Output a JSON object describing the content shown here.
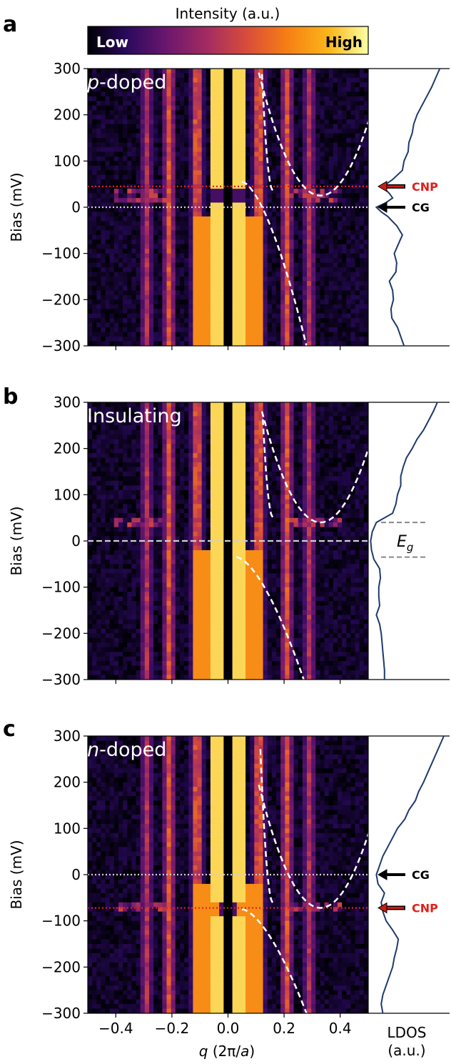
{
  "colorbar": {
    "label": "Intensity (a.u.)",
    "low_label": "Low",
    "high_label": "High",
    "colormap": "inferno",
    "stops": [
      "#000004",
      "#2a0a5e",
      "#6a176e",
      "#a52c60",
      "#d94d3a",
      "#f67e14",
      "#fbb61a",
      "#fcffa4"
    ]
  },
  "axis_common": {
    "ylabel": "Bias (mV)",
    "xlabel": "q (2π/a)",
    "xlabel_italic": "q",
    "xlabel_rest": " (2π/",
    "xlabel_a": "a",
    "xlabel_close": ")",
    "ldos_label_line1": "LDOS",
    "ldos_label_line2": "(a.u.)",
    "xticks": [
      "−0.4",
      "−0.2",
      "0.0",
      "0.2",
      "0.4"
    ],
    "yticks": [
      "300",
      "200",
      "100",
      "0",
      "−100",
      "−200",
      "−300"
    ]
  },
  "chart_data": [
    {
      "panel": "a",
      "type": "heatmap",
      "title": "p-doped",
      "title_italic": "p",
      "title_rest": "-doped",
      "xlim": [
        -0.5,
        0.5
      ],
      "ylim": [
        -300,
        300
      ],
      "grid": false,
      "hlines": [
        {
          "y": 45,
          "color": "#e0201a",
          "style": "dotted"
        },
        {
          "y": 0,
          "color": "#cfcfcf",
          "style": "dotted"
        }
      ],
      "band_curves": {
        "upper_vertex": [
          0.33,
          25
        ],
        "lower_from": [
          0.05,
          55
        ],
        "lower_to": [
          0.28,
          -300
        ]
      },
      "ldos": {
        "bias": [
          300,
          280,
          260,
          240,
          220,
          200,
          180,
          160,
          140,
          120,
          100,
          80,
          60,
          50,
          40,
          30,
          20,
          10,
          0,
          -10,
          -20,
          -40,
          -60,
          -80,
          -100,
          -120,
          -140,
          -160,
          -180,
          -200,
          -220,
          -240,
          -260,
          -280,
          -300
        ],
        "value": [
          0.88,
          0.83,
          0.78,
          0.72,
          0.66,
          0.6,
          0.56,
          0.54,
          0.5,
          0.49,
          0.44,
          0.42,
          0.3,
          0.22,
          0.2,
          0.26,
          0.3,
          0.22,
          0.1,
          0.16,
          0.24,
          0.35,
          0.42,
          0.37,
          0.32,
          0.35,
          0.34,
          0.26,
          0.3,
          0.31,
          0.28,
          0.29,
          0.36,
          0.4,
          0.44
        ]
      },
      "annotations": [
        {
          "text": "CNP",
          "y": 45,
          "color": "#e0201a"
        },
        {
          "text": "CG",
          "y": 0,
          "color": "#000000"
        }
      ]
    },
    {
      "panel": "b",
      "type": "heatmap",
      "title": "Insulating",
      "xlim": [
        -0.5,
        0.5
      ],
      "ylim": [
        -300,
        300
      ],
      "grid": false,
      "hlines": [
        {
          "y": 0,
          "color": "#cfcfcf",
          "style": "dashed"
        }
      ],
      "band_curves": {
        "upper_vertex": [
          0.33,
          40
        ],
        "lower_from": [
          0.03,
          -35
        ],
        "lower_to": [
          0.27,
          -300
        ]
      },
      "ldos": {
        "bias": [
          300,
          280,
          260,
          240,
          220,
          200,
          180,
          160,
          140,
          120,
          100,
          80,
          60,
          40,
          20,
          0,
          -20,
          -40,
          -60,
          -80,
          -100,
          -120,
          -140,
          -160,
          -180,
          -200,
          -220,
          -240,
          -260,
          -280,
          -300
        ],
        "value": [
          0.85,
          0.8,
          0.74,
          0.68,
          0.6,
          0.54,
          0.47,
          0.43,
          0.4,
          0.4,
          0.36,
          0.34,
          0.3,
          0.1,
          0.05,
          0.03,
          0.04,
          0.07,
          0.14,
          0.15,
          0.13,
          0.13,
          0.14,
          0.1,
          0.14,
          0.16,
          0.17,
          0.18,
          0.19,
          0.2,
          0.2
        ]
      },
      "gap_lines": [
        40,
        -35
      ],
      "gap_label": "E",
      "gap_label_sub": "g"
    },
    {
      "panel": "c",
      "type": "heatmap",
      "title": "n-doped",
      "title_italic": "n",
      "title_rest": "-doped",
      "xlim": [
        -0.5,
        0.5
      ],
      "ylim": [
        -300,
        300
      ],
      "grid": false,
      "hlines": [
        {
          "y": 0,
          "color": "#cfcfcf",
          "style": "dotted"
        },
        {
          "y": -72,
          "color": "#e0201a",
          "style": "dotted"
        }
      ],
      "band_curves": {
        "upper_vertex": [
          0.33,
          -72
        ],
        "lower_from": [
          0.05,
          -75
        ],
        "lower_to": [
          0.28,
          -300
        ]
      },
      "ldos": {
        "bias": [
          300,
          280,
          260,
          240,
          220,
          200,
          180,
          160,
          140,
          120,
          100,
          80,
          60,
          40,
          20,
          0,
          -20,
          -40,
          -60,
          -80,
          -100,
          -120,
          -140,
          -160,
          -180,
          -200,
          -220,
          -240,
          -260,
          -280,
          -300
        ],
        "value": [
          0.93,
          0.88,
          0.83,
          0.78,
          0.73,
          0.68,
          0.62,
          0.58,
          0.5,
          0.45,
          0.36,
          0.3,
          0.24,
          0.18,
          0.14,
          0.1,
          0.12,
          0.2,
          0.16,
          0.18,
          0.22,
          0.3,
          0.37,
          0.35,
          0.32,
          0.3,
          0.26,
          0.22,
          0.18,
          0.16,
          0.18
        ]
      },
      "annotations": [
        {
          "text": "CG",
          "y": 0,
          "color": "#000000"
        },
        {
          "text": "CNP",
          "y": -72,
          "color": "#e0201a"
        }
      ]
    }
  ]
}
